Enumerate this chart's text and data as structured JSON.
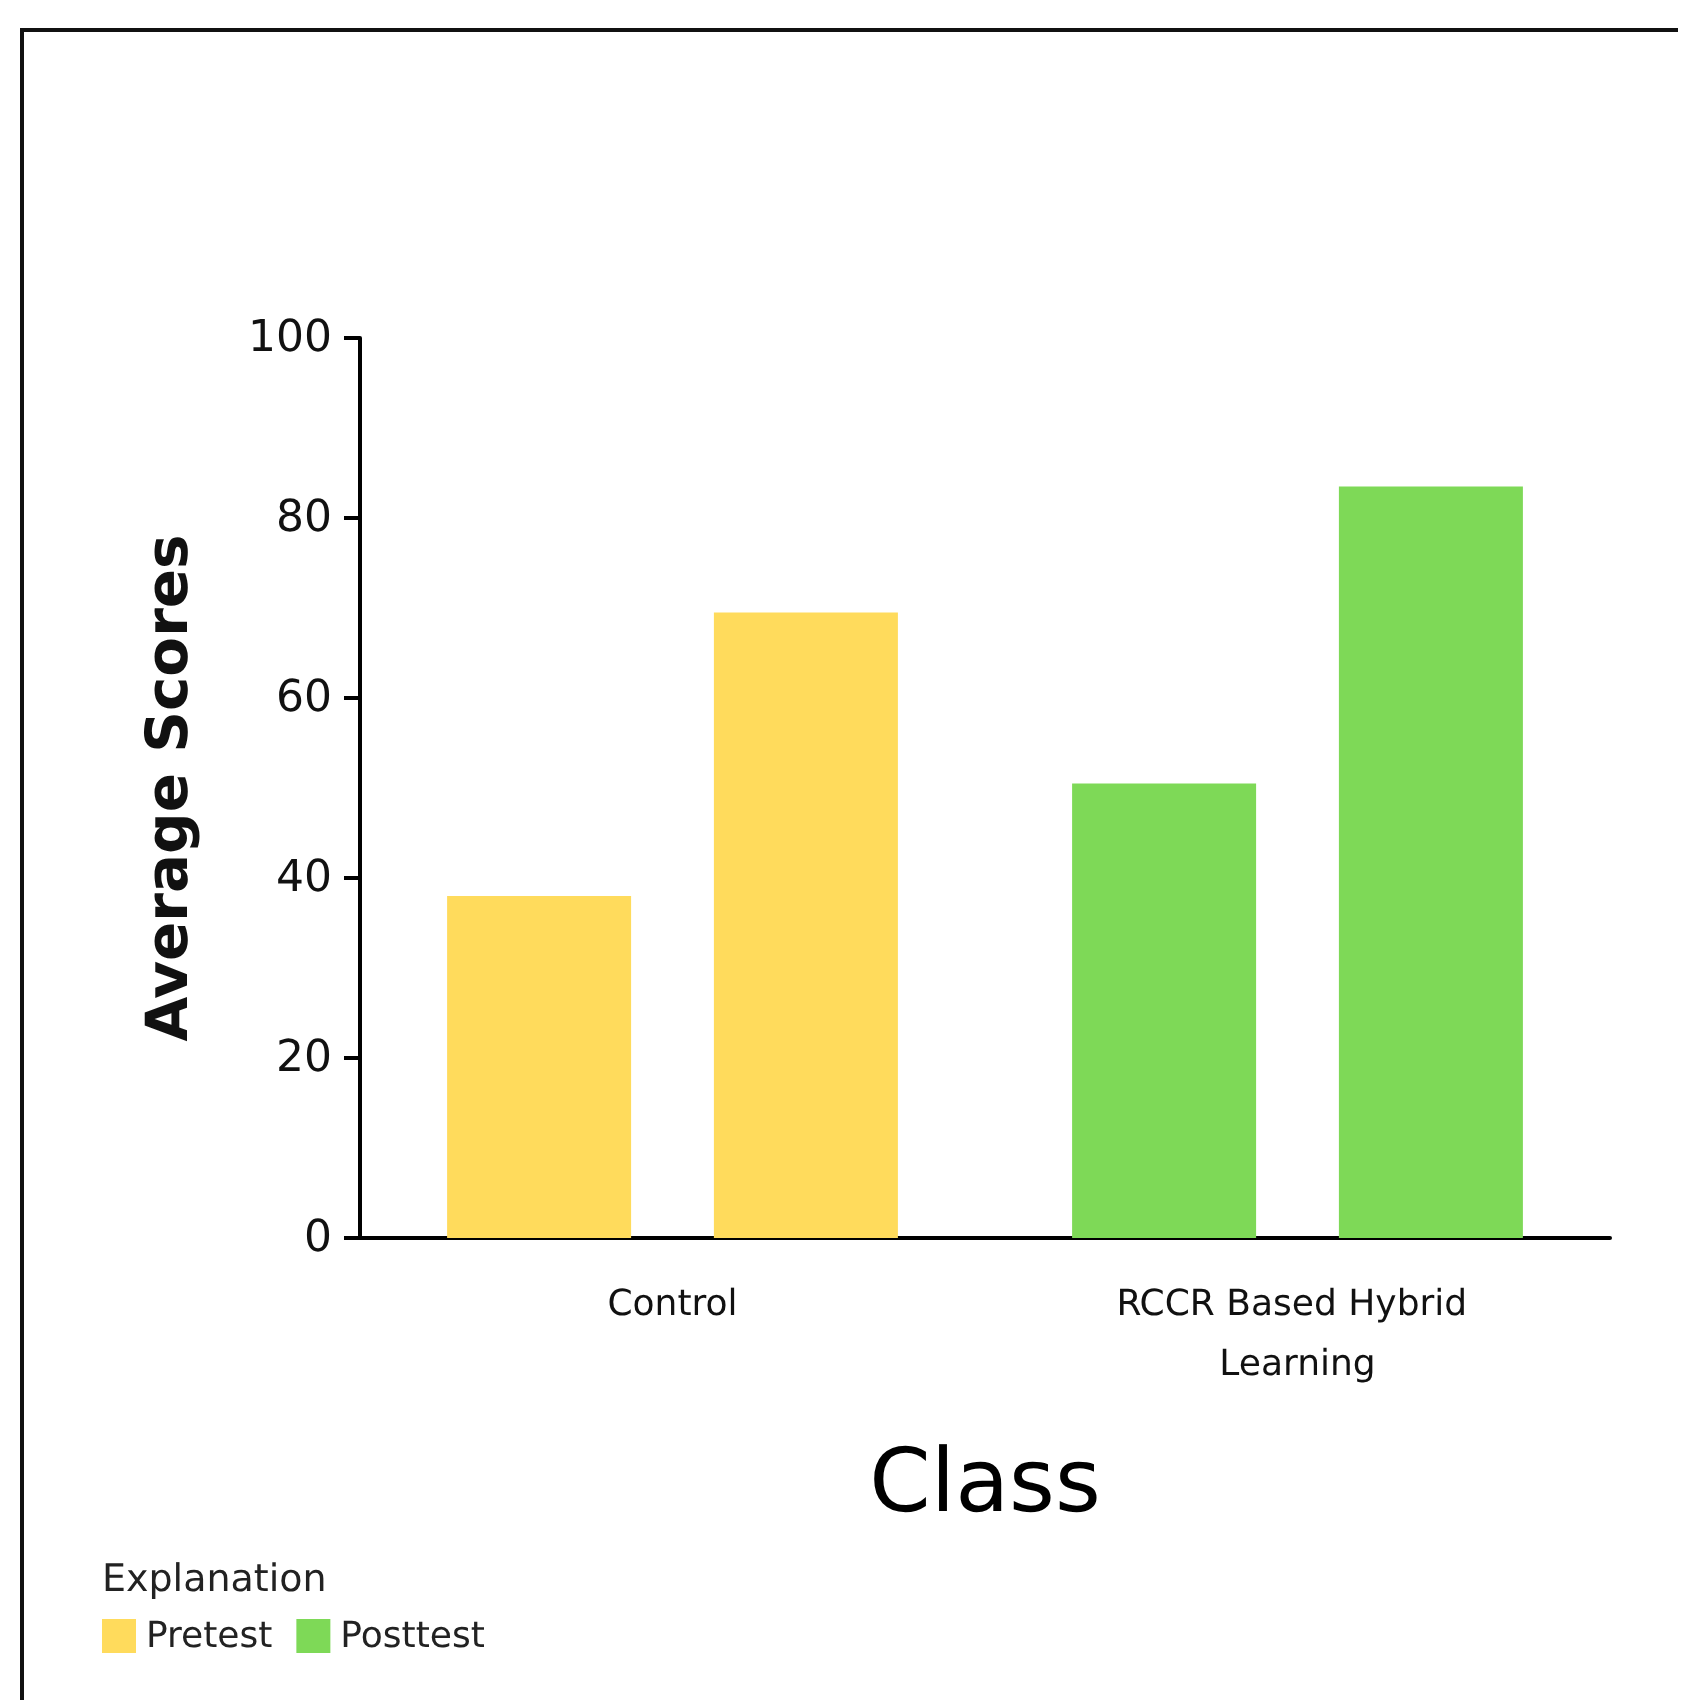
{
  "chart_data": {
    "type": "bar",
    "xlabel": "Class",
    "ylabel": "Average Scores",
    "legend_title": "Explanation",
    "categories": [
      "Control",
      "RCCR Based Hybrid Learning"
    ],
    "series": [
      {
        "name": "Pretest",
        "color": "#ffdb5c",
        "colors": [
          "#ffdb5c",
          "#7ed957"
        ],
        "values": [
          38,
          50.5
        ]
      },
      {
        "name": "Posttest",
        "color": "#7ed957",
        "colors": [
          "#ffdb5c",
          "#7ed957"
        ],
        "values": [
          69.5,
          83.5
        ]
      }
    ],
    "ylim": [
      0,
      100
    ],
    "yticks": [
      0,
      20,
      40,
      60,
      80,
      100
    ],
    "grid": false,
    "legend": "bottom left"
  }
}
